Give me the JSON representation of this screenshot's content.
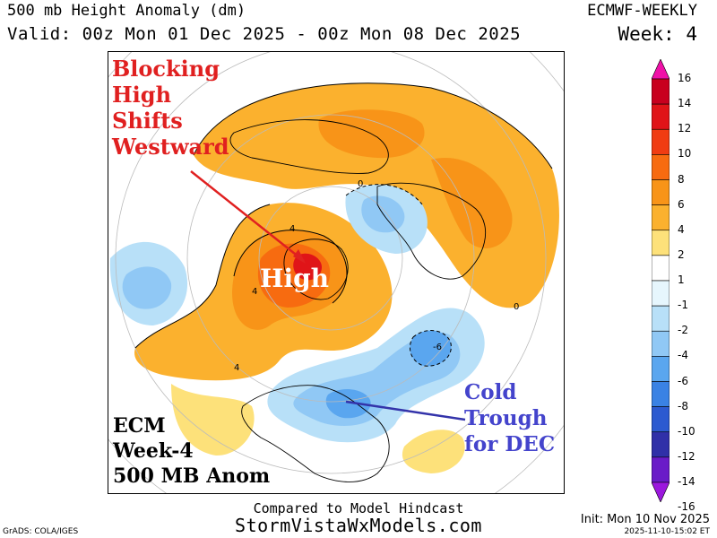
{
  "header": {
    "title": "500 mb Height Anomaly (dm)",
    "valid": "Valid: 00z Mon 01 Dec 2025 - 00z Mon 08 Dec 2025",
    "model": "ECMWF-WEEKLY",
    "week": "Week: 4"
  },
  "annotations": {
    "blocking": "Blocking\nHigh\nShifts\nWestward",
    "high": "High",
    "cold": "Cold\nTrough\nfor DEC",
    "ecm": "ECM\nWeek-4\n500 MB Anom"
  },
  "contour_labels": [
    "4",
    "4",
    "4",
    "-6",
    "0",
    "0"
  ],
  "colorbar": {
    "ticks": [
      "16",
      "14",
      "12",
      "10",
      "8",
      "6",
      "4",
      "2",
      "1",
      "-1",
      "-2",
      "-4",
      "-6",
      "-8",
      "-10",
      "-12",
      "-14",
      "-16"
    ],
    "colors": [
      "#f011a8",
      "#c8001e",
      "#e01418",
      "#f03c12",
      "#f76b10",
      "#f89418",
      "#fbb12e",
      "#fde17a",
      "#ffffff",
      "#e6f6fd",
      "#b8e0f8",
      "#90c8f5",
      "#5aa6ef",
      "#3a82e4",
      "#2c5ad0",
      "#3030a8",
      "#6a1bc8",
      "#9b18dd"
    ]
  },
  "footer": {
    "compared": "Compared to Model Hindcast",
    "site": "StormVistaWxModels.com",
    "grads": "GrADS: COLA/IGES",
    "init": "Init: Mon 10 Nov 2025",
    "stamp": "2025-11-10-15:02 ET"
  }
}
